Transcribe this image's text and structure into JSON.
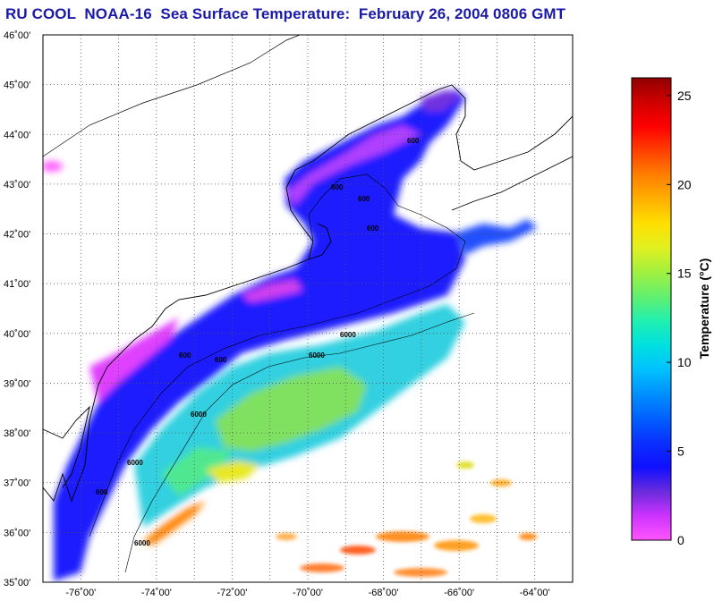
{
  "title": "RU COOL  NOAA-16  Sea Surface Temperature:  February 26, 2004 0806 GMT",
  "map": {
    "lat_labels": [
      "46˚00'",
      "45˚00'",
      "44˚00'",
      "43˚00'",
      "42˚00'",
      "41˚00'",
      "40˚00'",
      "39˚00'",
      "38˚00'",
      "37˚00'",
      "36˚00'",
      "35˚00'"
    ],
    "lon_labels": [
      "-76˚00'",
      "-74˚00'",
      "-72˚00'",
      "-70˚00'",
      "-68˚00'",
      "-66˚00'",
      "-64˚00'"
    ],
    "contour_labels": [
      "600",
      "600",
      "600",
      "600",
      "600",
      "600",
      "6000",
      "6000",
      "6000",
      "6000",
      "600",
      "6000"
    ],
    "land_color": "#ffffff",
    "grid_color": "#555555"
  },
  "colorbar": {
    "title": "Temperature (°C)",
    "min": 0,
    "max": 26,
    "tick_labels": [
      "0",
      "5",
      "10",
      "15",
      "20",
      "25"
    ],
    "tick_values": [
      0,
      5,
      10,
      15,
      20,
      25
    ],
    "colors": [
      "#ff55ff",
      "#cc33ff",
      "#6a2bdc",
      "#1010ff",
      "#0a30ff",
      "#0060ff",
      "#0090ff",
      "#00c0ff",
      "#00e0e0",
      "#20f0b0",
      "#60f070",
      "#a0f040",
      "#e0f020",
      "#ffe000",
      "#ffb000",
      "#ff8000",
      "#ff4000",
      "#ff0000",
      "#d00000",
      "#900000"
    ]
  }
}
